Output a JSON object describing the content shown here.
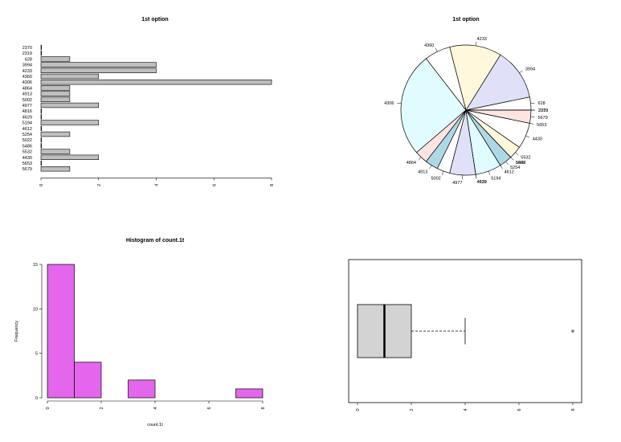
{
  "colors": {
    "bar_fill": "#bebebe",
    "hist_fill": "#e466ec",
    "box_fill": "#d3d3d3",
    "pie_palette": [
      "#aed8e6",
      "#ffffff",
      "#e0e0f8",
      "#fff8dc",
      "#ffffff",
      "#e0fcff",
      "#ffe4e1"
    ]
  },
  "chart_data": [
    {
      "type": "bar",
      "orientation": "horizontal",
      "title": "1st option",
      "categories": [
        "2370",
        "2319",
        "628",
        "3994",
        "4233",
        "4360",
        "4306",
        "4864",
        "4913",
        "5002",
        "4977",
        "4816",
        "4629",
        "5194",
        "4612",
        "5254",
        "5022",
        "5486",
        "5532",
        "4430",
        "5653",
        "5679"
      ],
      "values": [
        0,
        0,
        1,
        4,
        4,
        2,
        8,
        1,
        1,
        1,
        2,
        0,
        0,
        2,
        0,
        1,
        0,
        0,
        1,
        2,
        0,
        1
      ],
      "xticks": [
        0,
        2,
        4,
        6,
        8
      ],
      "xlim": [
        0,
        8
      ]
    },
    {
      "type": "pie",
      "title": "1st option",
      "labels": [
        "2319",
        "628",
        "3994",
        "4233",
        "4360",
        "4306",
        "4864",
        "4913",
        "5002",
        "4977",
        "4816",
        "4629",
        "5194",
        "4612",
        "5254",
        "5022",
        "5486",
        "5532",
        "4430",
        "5653",
        "5679",
        "2370"
      ],
      "values": [
        0,
        1,
        4,
        4,
        2,
        8,
        1,
        1,
        1,
        2,
        0,
        0,
        2,
        0,
        1,
        0,
        0,
        1,
        2,
        0,
        1,
        0
      ]
    },
    {
      "type": "histogram",
      "title": "Histogram of count.1t",
      "xlabel": "count.1t",
      "ylabel": "Frequency",
      "bins": [
        [
          0,
          1
        ],
        [
          1,
          2
        ],
        [
          2,
          3
        ],
        [
          3,
          4
        ],
        [
          4,
          5
        ],
        [
          5,
          6
        ],
        [
          6,
          7
        ],
        [
          7,
          8
        ]
      ],
      "counts": [
        15,
        4,
        0,
        2,
        0,
        0,
        0,
        1
      ],
      "xticks": [
        0,
        2,
        4,
        6,
        8
      ],
      "yticks": [
        0,
        5,
        10,
        15
      ]
    },
    {
      "type": "boxplot",
      "orientation": "horizontal",
      "min": 0,
      "q1": 0,
      "median": 1,
      "q3": 2,
      "whisker_high": 4,
      "outliers": [
        8
      ],
      "xticks": [
        0,
        2,
        4,
        6,
        8
      ]
    }
  ]
}
